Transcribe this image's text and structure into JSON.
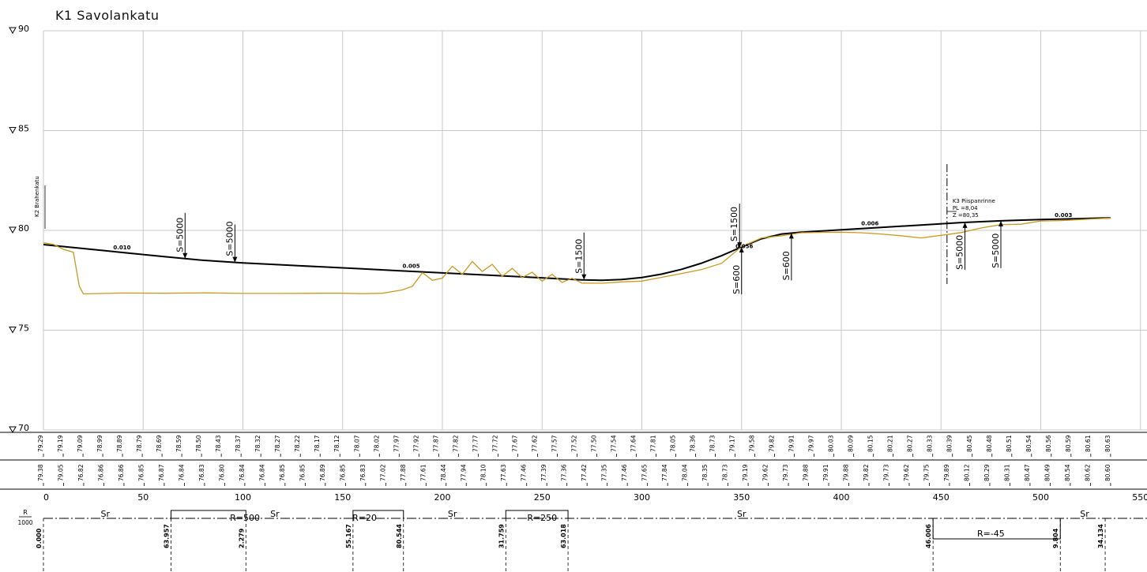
{
  "title": "K1  Savolankatu",
  "colors": {
    "design": "#000000",
    "ground": "#c99a1f",
    "grid": "#c8c8c8"
  },
  "elev_labels": [
    "90",
    "85",
    "80",
    "75",
    "70"
  ],
  "x_ticks": [
    "0",
    "50",
    "100",
    "150",
    "200",
    "250",
    "300",
    "350",
    "400",
    "450",
    "500",
    "550"
  ],
  "annotations": {
    "k2": "K2 Brahenkatu",
    "k3": "K3 Piispanrinne",
    "k3_pl": "PL =8,04",
    "k3_z": "Z =80,35",
    "slope1": "0.010",
    "slope2": "0.005",
    "slope3": "0.006",
    "slope4": "0.003",
    "slope5": "0.056"
  },
  "vc_labels": [
    "S=5000",
    "S=5000",
    "S=1500",
    "S=1500",
    "S=600",
    "S=600",
    "S=5000",
    "S=5000"
  ],
  "design_elev_row": [
    "79.29",
    "79.19",
    "79.09",
    "78.99",
    "78.89",
    "78.79",
    "78.69",
    "78.59",
    "78.50",
    "78.43",
    "78.37",
    "78.32",
    "78.27",
    "78.22",
    "78.17",
    "78.12",
    "78.07",
    "78.02",
    "77.97",
    "77.92",
    "77.87",
    "77.82",
    "77.77",
    "77.72",
    "77.67",
    "77.62",
    "77.57",
    "77.52",
    "77.50",
    "77.54",
    "77.64",
    "77.81",
    "78.05",
    "78.36",
    "78.73",
    "79.17",
    "79.58",
    "79.82",
    "79.91",
    "79.97",
    "80.03",
    "80.09",
    "80.15",
    "80.21",
    "80.27",
    "80.33",
    "80.39",
    "80.45",
    "80.48",
    "80.51",
    "80.54",
    "80.56",
    "80.59",
    "80.61",
    "80.63"
  ],
  "ground_elev_row": [
    "79.38",
    "79.05",
    "76.82",
    "76.86",
    "76.86",
    "76.85",
    "76.87",
    "76.84",
    "76.83",
    "76.80",
    "76.84",
    "76.84",
    "76.85",
    "76.85",
    "76.89",
    "76.85",
    "76.83",
    "77.02",
    "77.88",
    "77.61",
    "78.44",
    "77.94",
    "78.10",
    "77.63",
    "77.46",
    "77.39",
    "77.36",
    "77.42",
    "77.35",
    "77.46",
    "77.65",
    "77.84",
    "78.04",
    "78.35",
    "78.73",
    "79.19",
    "79.62",
    "79.73",
    "79.88",
    "79.91",
    "79.88",
    "79.82",
    "79.73",
    "79.62",
    "79.75",
    "79.89",
    "80.12",
    "80.29",
    "80.31",
    "80.47",
    "80.49",
    "80.54",
    "80.62",
    "80.60"
  ],
  "curve_strip": {
    "r_label": "R",
    "r_den": "1000",
    "segments": [
      "Sr",
      "R=500",
      "Sr",
      "R=20",
      "Sr",
      "R=250",
      "Sr",
      "R=-45",
      "Sr"
    ],
    "values": [
      "0.000",
      "63.957",
      "2.279",
      "55.167",
      "80.544",
      "31.759",
      "63.018",
      "46.006",
      "9.804",
      "34.134"
    ]
  },
  "chart_data": {
    "type": "line",
    "title": "K1  Savolankatu",
    "xlabel": "",
    "ylabel": "",
    "xlim": [
      0,
      550
    ],
    "ylim": [
      70,
      90
    ],
    "x_ticks": [
      0,
      50,
      100,
      150,
      200,
      250,
      300,
      350,
      400,
      450,
      500,
      550
    ],
    "y_ticks": [
      70,
      75,
      80,
      85,
      90
    ],
    "grid": true,
    "series": [
      {
        "kind": "design",
        "x": [
          0,
          20,
          40,
          60,
          80,
          100,
          120,
          140,
          160,
          180,
          200,
          220,
          240,
          260,
          270,
          280,
          290,
          300,
          310,
          320,
          330,
          340,
          350,
          360,
          370,
          380,
          400,
          420,
          440,
          460,
          480,
          500,
          520,
          535
        ],
        "y": [
          79.29,
          79.09,
          78.89,
          78.69,
          78.5,
          78.37,
          78.27,
          78.17,
          78.07,
          77.97,
          77.87,
          77.77,
          77.67,
          77.57,
          77.52,
          77.5,
          77.54,
          77.64,
          77.81,
          78.05,
          78.36,
          78.73,
          79.17,
          79.58,
          79.82,
          79.91,
          80.03,
          80.15,
          80.27,
          80.39,
          80.48,
          80.54,
          80.59,
          80.63
        ]
      },
      {
        "kind": "ground",
        "x": [
          0,
          5,
          10,
          15,
          18,
          20,
          40,
          60,
          80,
          100,
          120,
          140,
          150,
          160,
          170,
          180,
          185,
          190,
          195,
          200,
          205,
          210,
          215,
          220,
          225,
          230,
          235,
          240,
          245,
          250,
          255,
          260,
          265,
          270,
          280,
          290,
          300,
          310,
          320,
          330,
          340,
          350,
          360,
          370,
          380,
          390,
          400,
          410,
          420,
          430,
          440,
          450,
          460,
          470,
          480,
          490,
          500,
          510,
          520,
          535
        ],
        "y": [
          79.38,
          79.3,
          79.05,
          78.9,
          77.2,
          76.82,
          76.86,
          76.85,
          76.87,
          76.84,
          76.84,
          76.85,
          76.85,
          76.83,
          76.85,
          77.02,
          77.2,
          77.88,
          77.5,
          77.61,
          78.2,
          77.8,
          78.44,
          77.94,
          78.3,
          77.7,
          78.1,
          77.63,
          77.9,
          77.46,
          77.8,
          77.39,
          77.6,
          77.36,
          77.35,
          77.42,
          77.46,
          77.65,
          77.84,
          78.04,
          78.35,
          79.19,
          79.62,
          79.73,
          79.88,
          79.9,
          79.91,
          79.88,
          79.82,
          79.73,
          79.62,
          79.75,
          79.89,
          80.12,
          80.29,
          80.31,
          80.47,
          80.49,
          80.54,
          80.62
        ]
      }
    ]
  }
}
